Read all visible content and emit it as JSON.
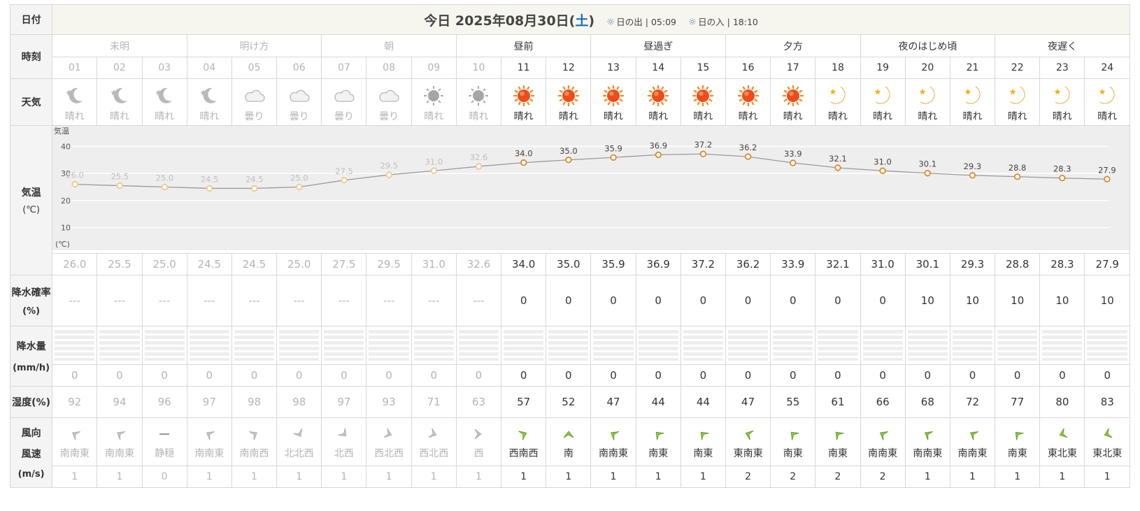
{
  "header": {
    "row_label": "日付",
    "today_prefix": "今日",
    "date_text": "2025年08月30日(",
    "weekday": "土",
    "date_close": ")",
    "sunrise_label": "日の出",
    "sunrise_time": "05:09",
    "sunset_label": "日の入",
    "sunset_time": "18:10"
  },
  "row_labels": {
    "time": "時刻",
    "weather": "天気",
    "temp_line1": "気温",
    "temp_line2": "(℃)",
    "prob_line1": "降水確率",
    "prob_line2": "(%)",
    "rain_line1": "降水量",
    "rain_line2": "(mm/h)",
    "humidity": "湿度(%)",
    "wind_line1": "風向",
    "wind_line2": "風速",
    "wind_line3": "(m/s)"
  },
  "periods": [
    {
      "label": "未明",
      "span": 3,
      "past": true
    },
    {
      "label": "明け方",
      "span": 3,
      "past": true
    },
    {
      "label": "朝",
      "span": 3,
      "past": true
    },
    {
      "label": "昼前",
      "span": 3,
      "past": false
    },
    {
      "label": "昼過ぎ",
      "span": 3,
      "past": false
    },
    {
      "label": "夕方",
      "span": 3,
      "past": false
    },
    {
      "label": "夜のはじめ頃",
      "span": 3,
      "past": false
    },
    {
      "label": "夜遅く",
      "span": 3,
      "past": false
    }
  ],
  "hours": [
    "01",
    "02",
    "03",
    "04",
    "05",
    "06",
    "07",
    "08",
    "09",
    "10",
    "11",
    "12",
    "13",
    "14",
    "15",
    "16",
    "17",
    "18",
    "19",
    "20",
    "21",
    "22",
    "23",
    "24"
  ],
  "past_count": 10,
  "weather_icons": [
    "moon-icon",
    "moon-icon",
    "moon-icon",
    "moon-icon",
    "cloud-icon",
    "cloud-icon",
    "cloud-icon",
    "cloud-icon",
    "clear-icon",
    "clear-icon",
    "sun-icon",
    "sun-icon",
    "sun-icon",
    "sun-icon",
    "sun-icon",
    "sun-icon",
    "sun-icon",
    "crescent-moon-icon",
    "crescent-moon-icon",
    "crescent-moon-icon",
    "crescent-moon-icon",
    "crescent-moon-icon",
    "crescent-moon-icon",
    "crescent-moon-icon"
  ],
  "weather_text": [
    "晴れ",
    "晴れ",
    "晴れ",
    "晴れ",
    "曇り",
    "曇り",
    "曇り",
    "曇り",
    "晴れ",
    "晴れ",
    "晴れ",
    "晴れ",
    "晴れ",
    "晴れ",
    "晴れ",
    "晴れ",
    "晴れ",
    "晴れ",
    "晴れ",
    "晴れ",
    "晴れ",
    "晴れ",
    "晴れ",
    "晴れ"
  ],
  "chart_data": {
    "type": "line",
    "title": "気温",
    "ylabel": "(℃)",
    "x": [
      "01",
      "02",
      "03",
      "04",
      "05",
      "06",
      "07",
      "08",
      "09",
      "10",
      "11",
      "12",
      "13",
      "14",
      "15",
      "16",
      "17",
      "18",
      "19",
      "20",
      "21",
      "22",
      "23",
      "24"
    ],
    "series": [
      {
        "values": [
          26.0,
          25.5,
          25.0,
          24.5,
          24.5,
          25.0,
          27.5,
          29.5,
          31.0,
          32.6,
          34.0,
          35.0,
          35.9,
          36.9,
          37.2,
          36.2,
          33.9,
          32.1,
          31.0,
          30.1,
          29.3,
          28.8,
          28.3,
          27.9
        ]
      }
    ],
    "yticks": [
      10,
      20,
      30,
      40
    ],
    "ylim": [
      5,
      45
    ],
    "grid": true,
    "colors": {
      "past_point": "#f3c78f",
      "future_point": "#d98c2e",
      "line": "#9a9a9a",
      "past_label": "#c0c0c0",
      "future_label": "#444444",
      "plot_bg": "#eeeeee"
    }
  },
  "temps": [
    "26.0",
    "25.5",
    "25.0",
    "24.5",
    "24.5",
    "25.0",
    "27.5",
    "29.5",
    "31.0",
    "32.6",
    "34.0",
    "35.0",
    "35.9",
    "36.9",
    "37.2",
    "36.2",
    "33.9",
    "32.1",
    "31.0",
    "30.1",
    "29.3",
    "28.8",
    "28.3",
    "27.9"
  ],
  "precip_prob": [
    "---",
    "---",
    "---",
    "---",
    "---",
    "---",
    "---",
    "---",
    "---",
    "---",
    "0",
    "0",
    "0",
    "0",
    "0",
    "0",
    "0",
    "0",
    "0",
    "10",
    "10",
    "10",
    "10",
    "10"
  ],
  "precip_amount": [
    "0",
    "0",
    "0",
    "0",
    "0",
    "0",
    "0",
    "0",
    "0",
    "0",
    "0",
    "0",
    "0",
    "0",
    "0",
    "0",
    "0",
    "0",
    "0",
    "0",
    "0",
    "0",
    "0",
    "0"
  ],
  "humidity": [
    "92",
    "94",
    "96",
    "97",
    "98",
    "98",
    "97",
    "93",
    "71",
    "63",
    "57",
    "52",
    "47",
    "44",
    "44",
    "47",
    "55",
    "61",
    "66",
    "68",
    "72",
    "77",
    "80",
    "83"
  ],
  "wind_dir": [
    "南南東",
    "南南東",
    "静穏",
    "南南東",
    "南南西",
    "北北西",
    "北西",
    "西北西",
    "西北西",
    "西",
    "西南西",
    "南",
    "南南東",
    "南東",
    "南東",
    "東南東",
    "南東",
    "南東",
    "南南東",
    "南南東",
    "南南東",
    "南東",
    "東北東",
    "東北東"
  ],
  "wind_speed": [
    "1",
    "1",
    "0",
    "1",
    "1",
    "1",
    "1",
    "1",
    "1",
    "1",
    "1",
    "1",
    "1",
    "1",
    "1",
    "2",
    "2",
    "2",
    "2",
    "1",
    "1",
    "1",
    "1",
    "1"
  ]
}
